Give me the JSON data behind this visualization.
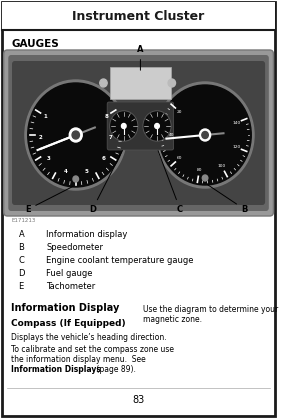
{
  "title": "Instrument Cluster",
  "section_header": "GAUGES",
  "image_label": "E171213",
  "labels_ordered": [
    [
      "A",
      "Information display"
    ],
    [
      "B",
      "Speedometer"
    ],
    [
      "C",
      "Engine coolant temperature gauge"
    ],
    [
      "D",
      "Fuel gauge"
    ],
    [
      "E",
      "Tachometer"
    ]
  ],
  "section2_title": "Information Display",
  "section2_sub": "Compass (If Equipped)",
  "section2_body1": "Displays the vehicle’s heading direction.",
  "section2_body2_line1": "To calibrate and set the compass zone use",
  "section2_body2_line2": "the information display menu.  See",
  "section2_body2_bold": "Information Displays",
  "section2_body2_end": " (page 89).",
  "right_col_text": "Use the diagram to determine your\nmagnetic zone.",
  "page_number": "83",
  "bg_color": "#ffffff",
  "title_bar_bg": "#ffffff",
  "title_border_color": "#1a1a1a",
  "cluster_outer_color": "#888888",
  "cluster_inner_color": "#666666",
  "gauge_bg": "#111111",
  "gauge_bezel": "#555555"
}
